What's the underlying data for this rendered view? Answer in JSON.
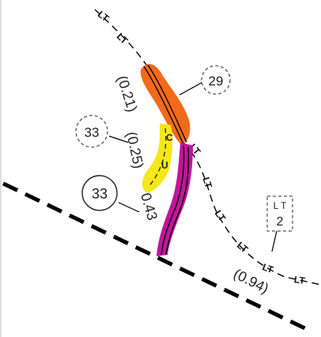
{
  "map": {
    "line_tag": "LT",
    "highlight_colors": {
      "orange": "#f26a1b",
      "yellow": "#f6e61c",
      "magenta": "#c0169a"
    },
    "bubbles": {
      "b29": {
        "text": "29",
        "style": "dashed-circle"
      },
      "b33_dashed": {
        "text": "33",
        "style": "dashed-circle"
      },
      "b33_solid": {
        "text": "33",
        "style": "solid-circle"
      },
      "lt2": {
        "top": "L T",
        "bottom": "2",
        "style": "dashed-box"
      }
    },
    "measurements": {
      "m021": "(0.21)",
      "m025": "(0.25)",
      "m043": "0.43",
      "m094": "(0.94)"
    },
    "inline_codes": {
      "u": "U",
      "c": "C"
    }
  }
}
